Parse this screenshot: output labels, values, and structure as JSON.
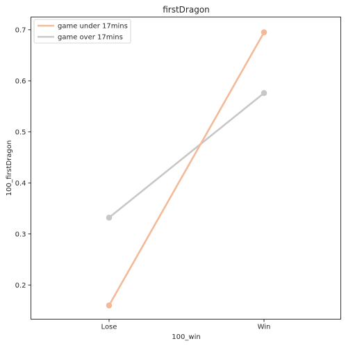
{
  "chart_data": {
    "type": "line",
    "title": "firstDragon",
    "xlabel": "100_win",
    "ylabel": "100_firstDragon",
    "categories": [
      "Lose",
      "Win"
    ],
    "ylim": [
      0.133,
      0.725
    ],
    "yticks": [
      0.2,
      0.3,
      0.4,
      0.5,
      0.6,
      0.7
    ],
    "ytick_labels": [
      "0.2",
      "0.3",
      "0.4",
      "0.5",
      "0.6",
      "0.7"
    ],
    "grid": false,
    "legend_position": "top-left",
    "series": [
      {
        "name": "game under 17mins",
        "values": [
          0.16,
          0.695
        ],
        "color": "#f4b999"
      },
      {
        "name": "game over 17mins",
        "values": [
          0.332,
          0.576
        ],
        "color": "#c7c7c7"
      }
    ]
  }
}
